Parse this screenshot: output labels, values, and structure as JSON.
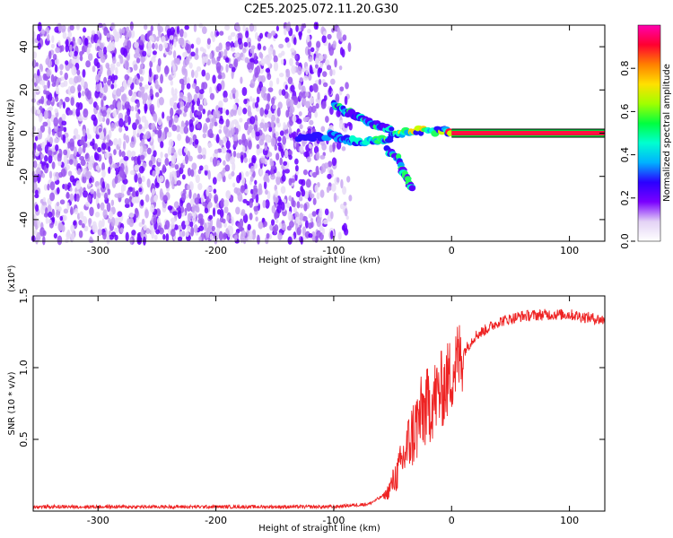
{
  "chart_data": [
    {
      "type": "heatmap",
      "title": "C2E5.2025.072.11.20.G30",
      "xlabel": "Height of straight line (km)",
      "ylabel": "Frequency (Hz)",
      "xlim": [
        -355,
        130
      ],
      "ylim": [
        -50,
        50
      ],
      "xticks": [
        -300,
        -200,
        -100,
        0,
        100
      ],
      "yticks": [
        -40,
        -20,
        0,
        20,
        40
      ],
      "colorbar": {
        "label": "Normalized spectral amplitude",
        "range": [
          0,
          1
        ],
        "ticks": [
          "0.0",
          "0.2",
          "0.4",
          "0.6",
          "0.8"
        ],
        "colormap": [
          "#ffffff",
          "#e3d2f5",
          "#7a00ff",
          "#2b00ff",
          "#00b2ff",
          "#00ffd0",
          "#00ff40",
          "#a0ff00",
          "#ffe000",
          "#ff8000",
          "#ff0030",
          "#ff00b0"
        ]
      },
      "features": [
        {
          "name": "noise",
          "x_range": [
            -355,
            -85
          ],
          "freq_range": [
            -50,
            50
          ],
          "amplitude": 0.1
        },
        {
          "name": "upper-branch",
          "points": [
            [
              -100,
              13
            ],
            [
              -90,
              10
            ],
            [
              -80,
              8
            ],
            [
              -70,
              5
            ],
            [
              -60,
              3
            ],
            [
              -50,
              2
            ]
          ]
        },
        {
          "name": "main-branch",
          "points": [
            [
              -130,
              -2
            ],
            [
              -115,
              -1.5
            ],
            [
              -100,
              -1
            ],
            [
              -90,
              -3
            ],
            [
              -80,
              -4
            ],
            [
              -65,
              -4
            ],
            [
              -55,
              -3
            ],
            [
              -45,
              0
            ],
            [
              -30,
              1
            ],
            [
              -10,
              1
            ],
            [
              0,
              1
            ]
          ]
        },
        {
          "name": "lower-branch",
          "points": [
            [
              -55,
              -8
            ],
            [
              -45,
              -12
            ],
            [
              -42,
              -17
            ],
            [
              -37,
              -22
            ],
            [
              -33,
              -27
            ]
          ]
        },
        {
          "name": "carrier",
          "x_range": [
            0,
            130
          ],
          "freq": 0,
          "amplitude": 1.0
        }
      ]
    },
    {
      "type": "line",
      "xlabel": "Height of straight line (km)",
      "ylabel": "SNR (10 * v/v)",
      "ylabel_scale": "(x10⁴)",
      "xlim": [
        -355,
        130
      ],
      "ylim": [
        0,
        1.5
      ],
      "xticks": [
        -300,
        -200,
        -100,
        0,
        100
      ],
      "yticks": [
        "0.5",
        "1.0",
        "1.5"
      ],
      "color": "#ee2222",
      "trend": {
        "x": [
          -355,
          -300,
          -200,
          -100,
          -70,
          -55,
          -45,
          -35,
          -25,
          -15,
          -5,
          5,
          20,
          40,
          60,
          80,
          100,
          130
        ],
        "y": [
          0.03,
          0.03,
          0.03,
          0.03,
          0.05,
          0.12,
          0.28,
          0.5,
          0.68,
          0.78,
          0.88,
          1.05,
          1.22,
          1.32,
          1.36,
          1.37,
          1.37,
          1.33
        ]
      }
    }
  ]
}
